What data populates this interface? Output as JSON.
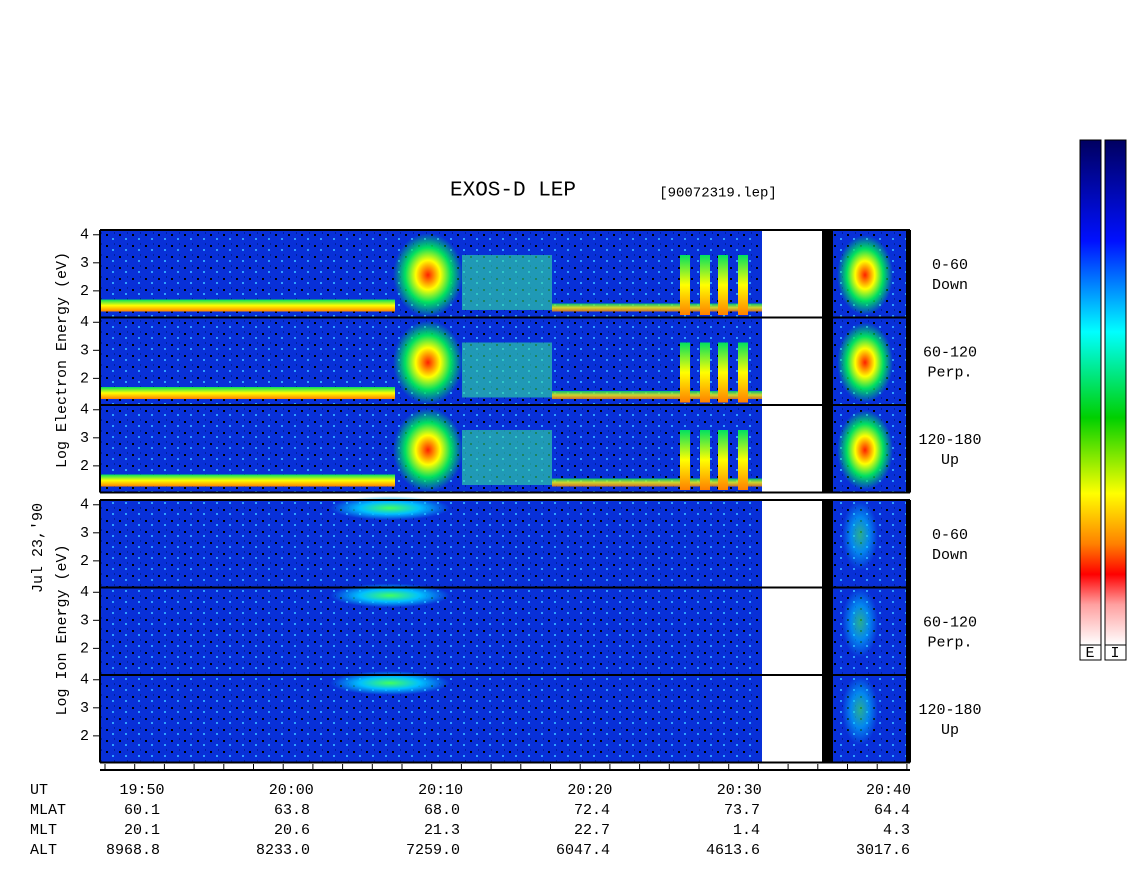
{
  "title": "EXOS-D LEP",
  "file": "[90072319.lep]",
  "date_label": "Jul 23,'90",
  "electron": {
    "ylabel": "Log  Electron  Energy (eV)",
    "ylim": [
      1.05,
      4.17
    ],
    "yticks": [
      2,
      3,
      4
    ],
    "channels": [
      {
        "range": "0-60",
        "dir": "Down"
      },
      {
        "range": "60-120",
        "dir": "Perp."
      },
      {
        "range": "120-180",
        "dir": "Up"
      }
    ]
  },
  "ion": {
    "ylabel": "Log  Ion  Energy (eV)",
    "ylim": [
      1.05,
      4.17
    ],
    "yticks": [
      2,
      3,
      4
    ],
    "channels": [
      {
        "range": "0-60",
        "dir": "Down"
      },
      {
        "range": "60-120",
        "dir": "Perp."
      },
      {
        "range": "120-180",
        "dir": "Up"
      }
    ]
  },
  "time": {
    "rows": [
      {
        "label": "UT",
        "values": [
          "19:50",
          "20:00",
          "20:10",
          "20:20",
          "20:30",
          "20:40"
        ]
      },
      {
        "label": "MLAT",
        "values": [
          "60.1",
          "63.8",
          "68.0",
          "72.4",
          "73.7",
          "64.4"
        ]
      },
      {
        "label": "MLT",
        "values": [
          "20.1",
          "20.6",
          "21.3",
          "22.7",
          "1.4",
          "4.3"
        ]
      },
      {
        "label": "ALT",
        "values": [
          "8968.8",
          "8233.0",
          "7259.0",
          "6047.4",
          "4613.6",
          "3017.6"
        ]
      }
    ]
  },
  "colorbar": {
    "labels": [
      "E",
      "I"
    ]
  }
}
